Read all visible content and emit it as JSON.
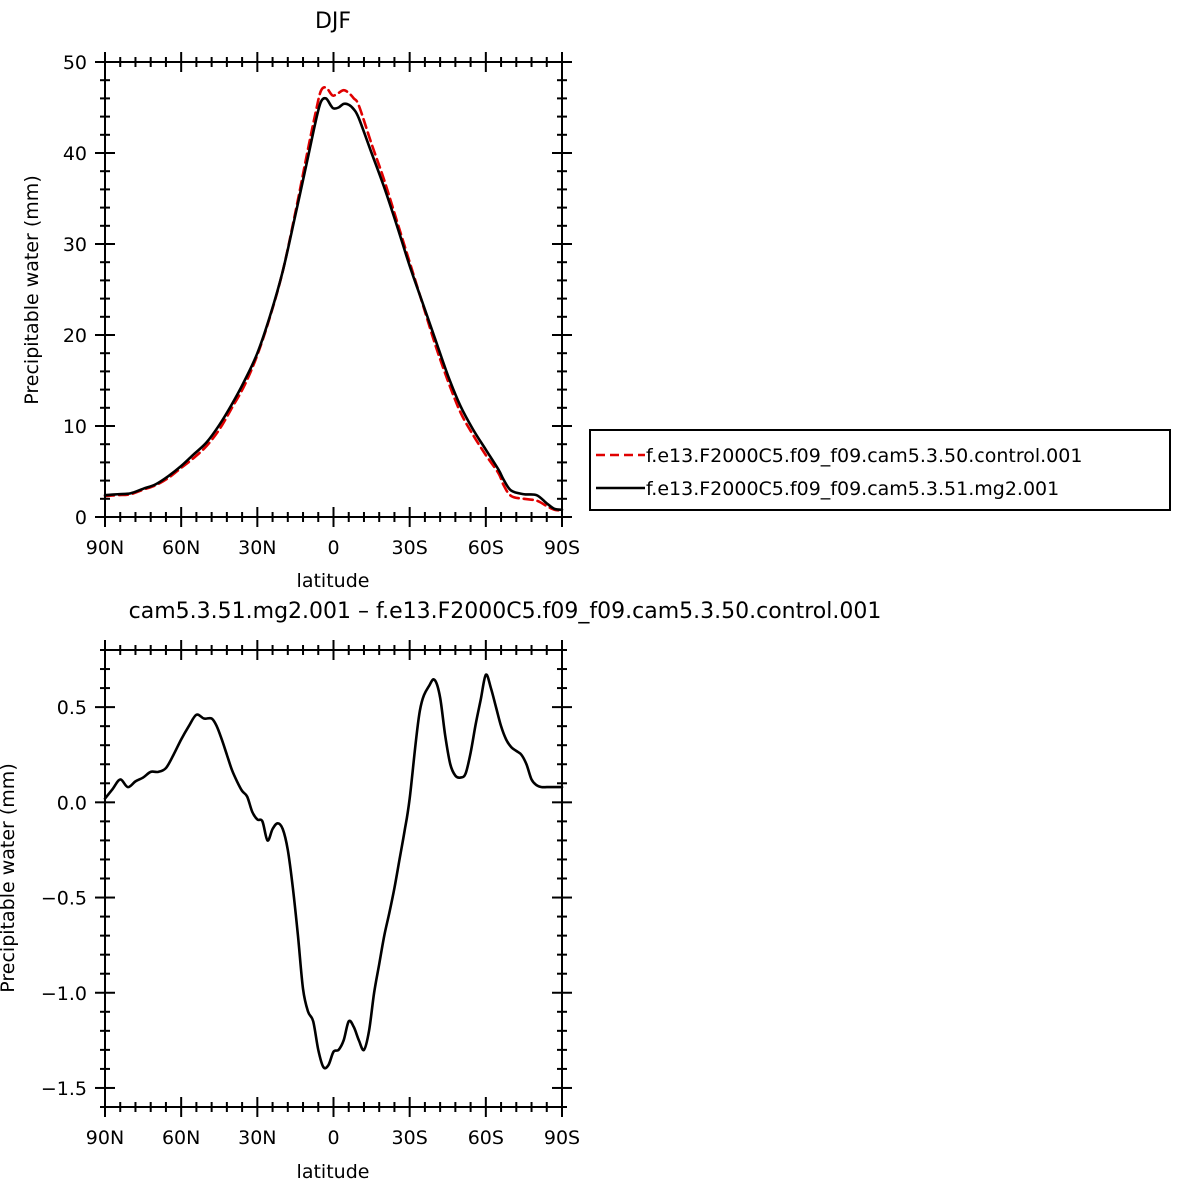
{
  "chart_data": [
    {
      "type": "line",
      "title": "DJF",
      "xlabel": "latitude",
      "ylabel": "Precipitable water (mm)",
      "xlim": [
        -90,
        90
      ],
      "ylim": [
        0,
        50
      ],
      "xticks": [
        -90,
        -60,
        -30,
        0,
        30,
        60,
        90
      ],
      "xtick_labels": [
        "90N",
        "60N",
        "30N",
        "0",
        "30S",
        "60S",
        "90S"
      ],
      "yticks": [
        0,
        10,
        20,
        30,
        40,
        50
      ],
      "ytick_labels": [
        "0",
        "10",
        "20",
        "30",
        "40",
        "50"
      ],
      "grid": false,
      "legend_position": "right",
      "series": [
        {
          "name": "f.e13.F2000C5.f09_f09.cam5.3.50.control.001",
          "color": "#e00000",
          "dash": "dashed",
          "x": [
            -90,
            -85,
            -80,
            -75,
            -70,
            -65,
            -60,
            -55,
            -50,
            -45,
            -40,
            -35,
            -30,
            -25,
            -20,
            -15,
            -10,
            -7,
            -5,
            -3,
            -1,
            0,
            2,
            4,
            6,
            8,
            10,
            15,
            20,
            25,
            30,
            35,
            40,
            45,
            50,
            55,
            60,
            65,
            67,
            70,
            75,
            80,
            84,
            87,
            90
          ],
          "values": [
            2.3,
            2.4,
            2.5,
            3.0,
            3.5,
            4.3,
            5.4,
            6.5,
            7.8,
            9.6,
            12.0,
            14.5,
            17.8,
            22.0,
            27.0,
            33.5,
            40.5,
            44.5,
            46.8,
            47.2,
            46.5,
            46.3,
            46.6,
            46.9,
            46.6,
            46.0,
            45.2,
            41.0,
            37.0,
            32.5,
            28.0,
            23.5,
            19.0,
            15.0,
            11.5,
            9.0,
            6.8,
            4.8,
            3.5,
            2.3,
            2.0,
            1.8,
            1.2,
            0.8,
            0.7
          ]
        },
        {
          "name": "f.e13.F2000C5.f09_f09.cam5.3.51.mg2.001",
          "color": "#000000",
          "dash": "solid",
          "x": [
            -90,
            -85,
            -80,
            -75,
            -70,
            -65,
            -60,
            -55,
            -50,
            -45,
            -40,
            -35,
            -30,
            -25,
            -20,
            -15,
            -10,
            -7,
            -5,
            -3,
            -1,
            0,
            2,
            4,
            6,
            8,
            10,
            15,
            20,
            25,
            30,
            35,
            40,
            45,
            50,
            55,
            60,
            65,
            67,
            70,
            75,
            80,
            84,
            87,
            90
          ],
          "values": [
            2.4,
            2.5,
            2.6,
            3.1,
            3.6,
            4.5,
            5.6,
            6.9,
            8.2,
            10.1,
            12.4,
            15.0,
            18.0,
            22.1,
            27.0,
            33.2,
            39.6,
            43.5,
            45.6,
            46.0,
            45.2,
            44.9,
            45.0,
            45.4,
            45.3,
            44.8,
            43.8,
            40.0,
            36.2,
            32.0,
            27.6,
            23.6,
            19.6,
            15.6,
            12.2,
            9.6,
            7.4,
            5.2,
            4.1,
            2.9,
            2.5,
            2.4,
            1.5,
            0.9,
            0.8
          ]
        }
      ]
    },
    {
      "type": "line",
      "title": "cam5.3.51.mg2.001 – f.e13.F2000C5.f09_f09.cam5.3.50.control.001",
      "xlabel": "latitude",
      "ylabel": "Precipitable water (mm)",
      "xlim": [
        -90,
        90
      ],
      "ylim": [
        -1.6,
        0.8
      ],
      "xticks": [
        -90,
        -60,
        -30,
        0,
        30,
        60,
        90
      ],
      "xtick_labels": [
        "90N",
        "60N",
        "30N",
        "0",
        "30S",
        "60S",
        "90S"
      ],
      "yticks": [
        -1.5,
        -1.0,
        -0.5,
        0.0,
        0.5
      ],
      "ytick_labels": [
        "−1.5",
        "−1.0",
        "−0.5",
        "0.0",
        "0.5"
      ],
      "grid": false,
      "series": [
        {
          "color": "#000000",
          "dash": "solid",
          "x": [
            -90,
            -87,
            -84,
            -81,
            -78,
            -75,
            -72,
            -69,
            -66,
            -63,
            -60,
            -57,
            -54,
            -51,
            -48,
            -46,
            -44,
            -42,
            -40,
            -38,
            -36,
            -34,
            -32,
            -30,
            -28,
            -26,
            -24,
            -22,
            -20,
            -18,
            -16,
            -14,
            -12,
            -10,
            -8,
            -6,
            -4,
            -2,
            0,
            2,
            4,
            6,
            8,
            10,
            12,
            14,
            16,
            18,
            20,
            22,
            24,
            26,
            28,
            30,
            34,
            38,
            40,
            42,
            44,
            46,
            48,
            50,
            52,
            54,
            56,
            58,
            60,
            62,
            64,
            66,
            68,
            70,
            72,
            74,
            76,
            78,
            80,
            82,
            84,
            86,
            88,
            90
          ],
          "values": [
            0.02,
            0.07,
            0.12,
            0.08,
            0.11,
            0.13,
            0.16,
            0.16,
            0.18,
            0.25,
            0.33,
            0.4,
            0.46,
            0.44,
            0.44,
            0.4,
            0.33,
            0.25,
            0.17,
            0.11,
            0.06,
            0.03,
            -0.05,
            -0.09,
            -0.1,
            -0.2,
            -0.14,
            -0.11,
            -0.14,
            -0.25,
            -0.45,
            -0.7,
            -0.98,
            -1.1,
            -1.15,
            -1.3,
            -1.39,
            -1.38,
            -1.31,
            -1.3,
            -1.25,
            -1.15,
            -1.18,
            -1.25,
            -1.3,
            -1.2,
            -1.0,
            -0.85,
            -0.7,
            -0.58,
            -0.45,
            -0.3,
            -0.15,
            0.02,
            0.48,
            0.62,
            0.64,
            0.55,
            0.35,
            0.2,
            0.14,
            0.13,
            0.15,
            0.26,
            0.41,
            0.54,
            0.67,
            0.6,
            0.5,
            0.4,
            0.33,
            0.29,
            0.27,
            0.25,
            0.2,
            0.12,
            0.09,
            0.08,
            0.08,
            0.08,
            0.08,
            0.08
          ]
        }
      ]
    }
  ]
}
